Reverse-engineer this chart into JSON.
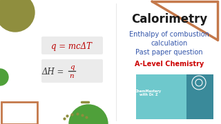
{
  "bg_color": "#ffffff",
  "title": "Calorimetry",
  "subtitle_lines": [
    "Enthalpy of combustion",
    "calculation",
    "Past paper question"
  ],
  "badge": "A-Level Chemistry",
  "formula1": "q = mcΔT",
  "formula2_left": "ΔH = ",
  "formula2_frac_num": "q",
  "formula2_frac_den": "n",
  "formula_color": "#bb0000",
  "formula_dark": "#333333",
  "title_color": "#1a1a1a",
  "subtitle_color": "#3355aa",
  "badge_color": "#cc0000",
  "box_color": "#ebebeb",
  "shape_olive": "#8f8e3e",
  "shape_copper": "#c4784a",
  "shape_green_light": "#4fa03a",
  "shape_green_dark": "#3d7a2a",
  "shape_olive2": "#8f8e3e",
  "thumb_bg": "#6ec8cc",
  "thumb_dark": "#3a8a9a"
}
